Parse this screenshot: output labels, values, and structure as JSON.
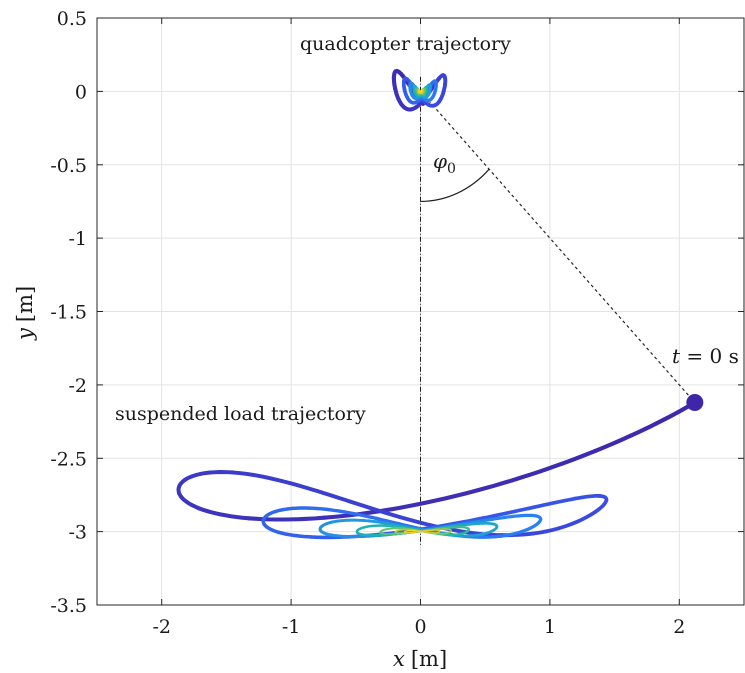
{
  "chart_data": {
    "type": "line",
    "title": "",
    "xlabel": "x",
    "xunit": "[m]",
    "ylabel": "y",
    "yunit": "[m]",
    "xlim": [
      -2.5,
      2.5
    ],
    "ylim": [
      -3.5,
      0.5
    ],
    "xticks": [
      -2,
      -1,
      0,
      1,
      2
    ],
    "yticks": [
      0.5,
      0,
      -0.5,
      -1,
      -1.5,
      -2,
      -2.5,
      -3,
      -3.5
    ],
    "xtick_labels": [
      "-2",
      "-1",
      "0",
      "1",
      "2"
    ],
    "ytick_labels": [
      "0.5",
      "0",
      "-0.5",
      "-1",
      "-1.5",
      "-2",
      "-2.5",
      "-3",
      "-3.5"
    ],
    "grid": true,
    "colormap": [
      "#3e26a8",
      "#3a4ce4",
      "#2a7ef2",
      "#1fa0d6",
      "#1fbba0",
      "#7ac75a",
      "#d2c03a",
      "#f9e01f"
    ],
    "pendulum_pivot": {
      "x": 0.0,
      "y": 0.0
    },
    "initial_load_position": {
      "x": 2.12,
      "y": -2.12
    },
    "initial_angle_deg": 45,
    "quadcopter_x_amplitude": 0.25,
    "quadcopter_y_amplitude": 0.15,
    "load_rest_y": -3.0,
    "annotations": {
      "quadcopter": "quadcopter trajectory",
      "load": "suspended load trajectory",
      "t0_prefix": "t",
      "t0_rest": " = 0 s",
      "angle_symbol": "φ",
      "angle_subscript": "0"
    }
  }
}
